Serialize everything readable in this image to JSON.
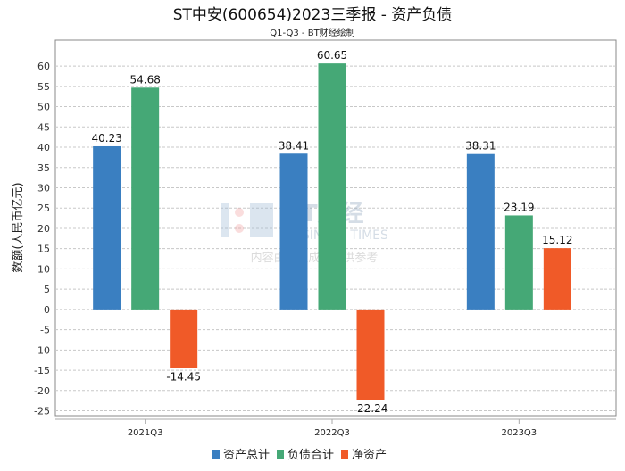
{
  "chart_data": {
    "type": "bar",
    "title": "ST中安(600654)2023三季报 - 资产负债",
    "subtitle": "Q1-Q3 - BT财经绘制",
    "xlabel": "",
    "ylabel": "数额(人民币亿元)",
    "categories": [
      "2021Q3",
      "2022Q3",
      "2023Q3"
    ],
    "series": [
      {
        "name": "资产总计",
        "color": "#3a7fc1",
        "values": [
          40.23,
          38.41,
          38.31
        ]
      },
      {
        "name": "负债合计",
        "color": "#45a876",
        "values": [
          54.68,
          60.65,
          23.19
        ]
      },
      {
        "name": "净资产",
        "color": "#f05a28",
        "values": [
          -14.45,
          -22.24,
          15.12
        ]
      }
    ],
    "ylim": [
      -26.2,
      66.4
    ],
    "yticks": [
      -25,
      -20,
      -15,
      -10,
      -5,
      0,
      5,
      10,
      15,
      20,
      25,
      30,
      35,
      40,
      45,
      50,
      55,
      60
    ],
    "grid": true,
    "legend": "bottom"
  },
  "watermark": {
    "logo": "BT财经",
    "logo_sub": "BUSINESS TIMES",
    "caption": "内容由AI生成，仅供参考"
  }
}
